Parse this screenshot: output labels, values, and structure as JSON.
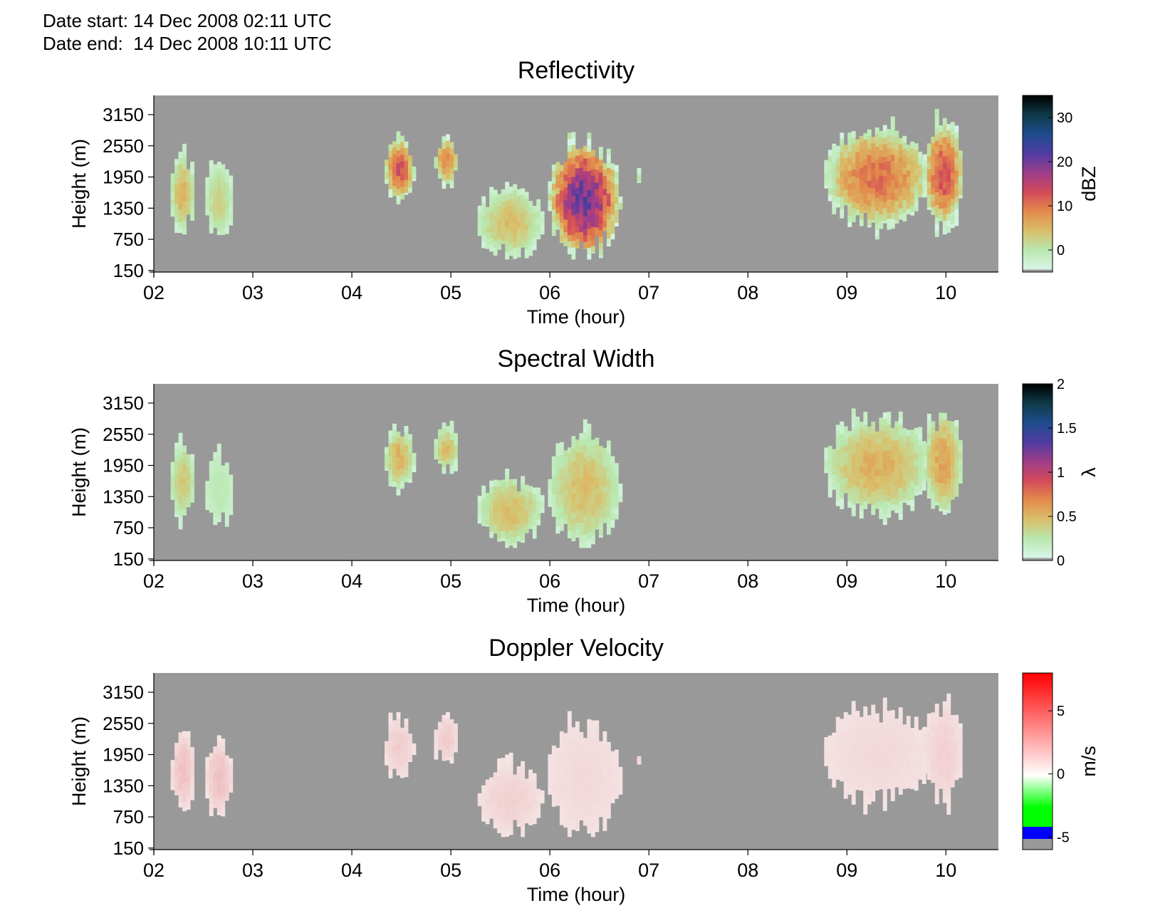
{
  "header": {
    "date_start": "Date start: 14 Dec 2008 02:11 UTC",
    "date_end": "Date end:  14 Dec 2008 10:11 UTC"
  },
  "chart_data": [
    {
      "type": "heatmap",
      "title": "Reflectivity",
      "xlabel": "Time (hour)",
      "ylabel": "Height (m)",
      "x_ticks": [
        "02",
        "03",
        "04",
        "05",
        "06",
        "07",
        "08",
        "09",
        "10"
      ],
      "x_range_hours": [
        2.0,
        10.53
      ],
      "y_ticks": [
        150,
        750,
        1350,
        1950,
        2550,
        3150
      ],
      "y_range": [
        120,
        3520
      ],
      "background_color": "#999999",
      "colorbar": {
        "label": "dBZ",
        "ticks": [
          0,
          10,
          20,
          30
        ],
        "range": [
          -5,
          35
        ],
        "colors": [
          "#d8f5e8",
          "#b9e7ae",
          "#d9bf6a",
          "#e38a4b",
          "#d24a5a",
          "#9c3d8a",
          "#4f3ca2",
          "#1e4c8c",
          "#0e3a48",
          "#000000"
        ]
      },
      "echo_regions": [
        {
          "t": [
            2.17,
            2.42
          ],
          "h": [
            900,
            2400
          ],
          "peak_dbz": 5
        },
        {
          "t": [
            2.52,
            2.8
          ],
          "h": [
            800,
            2200
          ],
          "peak_dbz": 2
        },
        {
          "t": [
            4.33,
            4.63
          ],
          "h": [
            1500,
            2700
          ],
          "peak_dbz": 12
        },
        {
          "t": [
            4.83,
            5.08
          ],
          "h": [
            1800,
            2700
          ],
          "peak_dbz": 8
        },
        {
          "t": [
            5.27,
            5.93
          ],
          "h": [
            420,
            1750
          ],
          "peak_dbz": 4
        },
        {
          "t": [
            5.98,
            6.72
          ],
          "h": [
            420,
            2600
          ],
          "peak_dbz": 20
        },
        {
          "t": [
            6.88,
            6.93
          ],
          "h": [
            1800,
            2000
          ],
          "peak_dbz": 1
        },
        {
          "t": [
            8.77,
            9.85
          ],
          "h": [
            1000,
            2900
          ],
          "peak_dbz": 10
        },
        {
          "t": [
            9.77,
            10.18
          ],
          "h": [
            1000,
            3000
          ],
          "peak_dbz": 12
        }
      ]
    },
    {
      "type": "heatmap",
      "title": "Spectral Width",
      "xlabel": "Time (hour)",
      "ylabel": "Height (m)",
      "x_ticks": [
        "02",
        "03",
        "04",
        "05",
        "06",
        "07",
        "08",
        "09",
        "10"
      ],
      "x_range_hours": [
        2.0,
        10.53
      ],
      "y_ticks": [
        150,
        750,
        1350,
        1950,
        2550,
        3150
      ],
      "y_range": [
        120,
        3520
      ],
      "background_color": "#999999",
      "colorbar": {
        "label": "λ",
        "ticks": [
          0,
          0.5,
          1,
          1.5,
          2
        ],
        "tick_labels": [
          "0",
          "0.5",
          "1",
          "1.5",
          "2"
        ],
        "range": [
          0,
          2
        ],
        "colors": [
          "#d8f5e8",
          "#b9e7ae",
          "#d9bf6a",
          "#e38a4b",
          "#d24a5a",
          "#9c3d8a",
          "#4f3ca2",
          "#1e4c8c",
          "#0e3a48",
          "#000000"
        ]
      },
      "echo_regions": [
        {
          "t": [
            2.17,
            2.42
          ],
          "h": [
            900,
            2400
          ],
          "peak": 0.4
        },
        {
          "t": [
            2.52,
            2.8
          ],
          "h": [
            800,
            2200
          ],
          "peak": 0.2
        },
        {
          "t": [
            4.33,
            4.63
          ],
          "h": [
            1500,
            2700
          ],
          "peak": 0.5
        },
        {
          "t": [
            4.83,
            5.08
          ],
          "h": [
            1800,
            2700
          ],
          "peak": 0.45
        },
        {
          "t": [
            5.27,
            5.93
          ],
          "h": [
            420,
            1750
          ],
          "peak": 0.45
        },
        {
          "t": [
            5.98,
            6.72
          ],
          "h": [
            420,
            2600
          ],
          "peak": 0.45
        },
        {
          "t": [
            6.88,
            6.93
          ],
          "h": [
            1800,
            2000
          ],
          "peak": 0.2
        },
        {
          "t": [
            8.77,
            9.85
          ],
          "h": [
            1000,
            2900
          ],
          "peak": 0.5
        },
        {
          "t": [
            9.77,
            10.18
          ],
          "h": [
            1000,
            3000
          ],
          "peak": 0.55
        }
      ]
    },
    {
      "type": "heatmap",
      "title": "Doppler Velocity",
      "xlabel": "Time (hour)",
      "ylabel": "Height (m)",
      "x_ticks": [
        "02",
        "03",
        "04",
        "05",
        "06",
        "07",
        "08",
        "09",
        "10"
      ],
      "x_range_hours": [
        2.0,
        10.53
      ],
      "y_ticks": [
        150,
        750,
        1350,
        1950,
        2550,
        3150
      ],
      "y_range": [
        120,
        3520
      ],
      "background_color": "#999999",
      "colorbar": {
        "label": "m/s",
        "ticks": [
          -5,
          0,
          5
        ],
        "range": [
          -6,
          8
        ],
        "colors": [
          "#999999",
          "#0000ff",
          "#00ff00",
          "#ffffff",
          "#ff0000"
        ]
      },
      "echo_regions": [
        {
          "t": [
            2.17,
            2.42
          ],
          "h": [
            900,
            2400
          ],
          "peak": 2.0
        },
        {
          "t": [
            2.52,
            2.8
          ],
          "h": [
            800,
            2200
          ],
          "peak": 2.0
        },
        {
          "t": [
            4.33,
            4.63
          ],
          "h": [
            1500,
            2700
          ],
          "peak": 1.5
        },
        {
          "t": [
            4.83,
            5.08
          ],
          "h": [
            1800,
            2700
          ],
          "peak": 1.5
        },
        {
          "t": [
            5.27,
            5.93
          ],
          "h": [
            420,
            1750
          ],
          "peak": 1.2
        },
        {
          "t": [
            5.98,
            6.72
          ],
          "h": [
            420,
            2600
          ],
          "peak": 0.8
        },
        {
          "t": [
            6.88,
            6.93
          ],
          "h": [
            1800,
            2000
          ],
          "peak": 1.2
        },
        {
          "t": [
            8.77,
            9.85
          ],
          "h": [
            1000,
            2900
          ],
          "peak": 0.8
        },
        {
          "t": [
            9.77,
            10.18
          ],
          "h": [
            1000,
            3000
          ],
          "peak": 1.2
        }
      ]
    }
  ]
}
